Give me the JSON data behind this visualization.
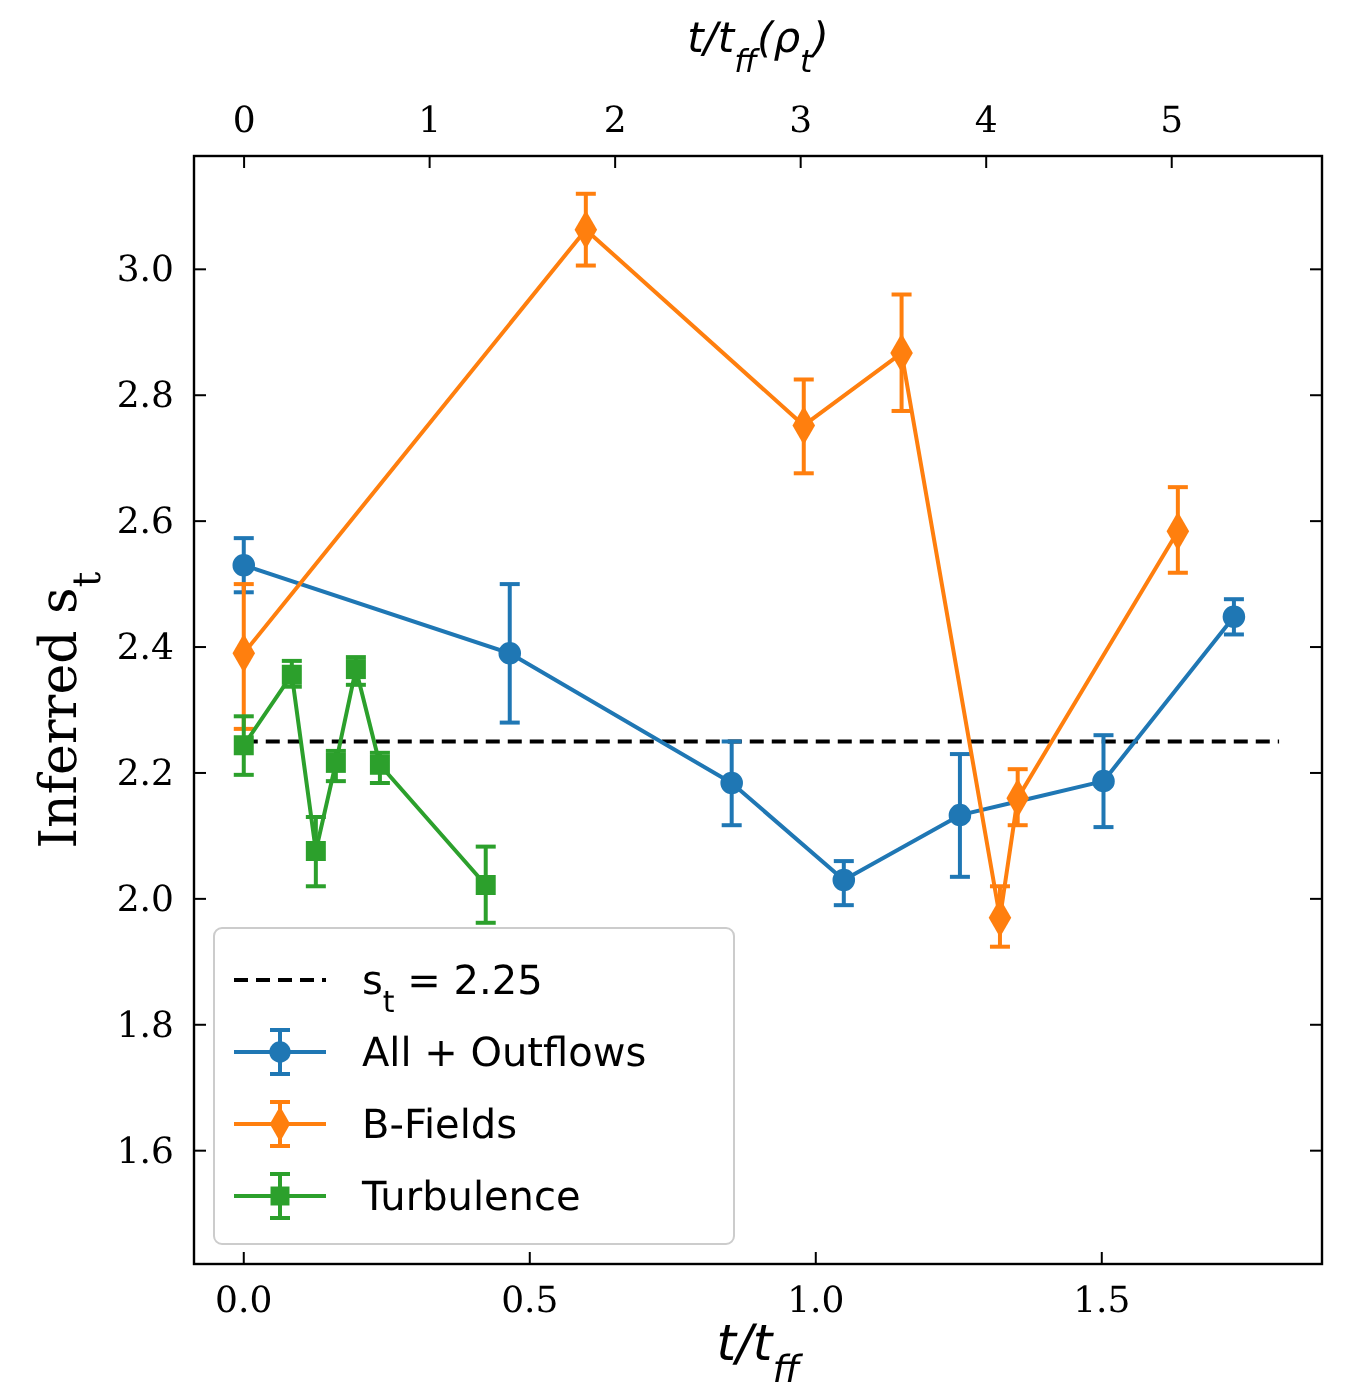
{
  "chart_data": {
    "type": "line",
    "xlabel": "t/t$_{ff}$",
    "ylabel": "Inferred s$_{t}$",
    "x2label": "t/t$_{ff}$(ρ$_{t}$)",
    "xlim": [
      -0.087,
      1.885
    ],
    "xticks": [
      {
        "value": 0,
        "label": "0.0"
      },
      {
        "value": 0.5,
        "label": "0.5"
      },
      {
        "value": 1,
        "label": "1.0"
      },
      {
        "value": 1.5,
        "label": "1.5"
      }
    ],
    "x2lim": [
      -0.27,
      5.81
    ],
    "x2ticks": [
      0,
      1,
      2,
      3,
      4,
      5
    ],
    "ylim": [
      1.42,
      3.18
    ],
    "yticks": [
      {
        "value": 1.6,
        "label": "1.6"
      },
      {
        "value": 1.8,
        "label": "1.8"
      },
      {
        "value": 2.0,
        "label": "2.0"
      },
      {
        "value": 2.2,
        "label": "2.2"
      },
      {
        "value": 2.4,
        "label": "2.4"
      },
      {
        "value": 2.6,
        "label": "2.6"
      },
      {
        "value": 2.8,
        "label": "2.8"
      },
      {
        "value": 3.0,
        "label": "3.0"
      }
    ],
    "grid": false,
    "legend": "bottom left",
    "series": [
      {
        "name": "s$_{t}$ = 2.25",
        "color": "#000000",
        "line_style": "dashed",
        "marker": "none",
        "x": [
          0,
          1.81
        ],
        "values": [
          2.25,
          2.25
        ]
      },
      {
        "name": "All + Outflows",
        "color": "#1f77b4",
        "marker": "circle",
        "x": [
          0,
          0.465,
          0.853,
          1.049,
          1.252,
          1.503,
          1.731
        ],
        "values": [
          2.53,
          2.39,
          2.184,
          2.03,
          2.133,
          2.187,
          2.448
        ],
        "errors": [
          [
            2.487,
            2.573
          ],
          [
            2.28,
            2.5
          ],
          [
            2.117,
            2.25
          ],
          [
            1.99,
            2.06
          ],
          [
            2.035,
            2.23
          ],
          [
            2.114,
            2.26
          ],
          [
            2.42,
            2.476
          ]
        ]
      },
      {
        "name": "B-Fields",
        "color": "#ff7f0e",
        "marker": "diamond",
        "x": [
          0,
          0.598,
          0.979,
          1.15,
          1.322,
          1.353,
          1.633
        ],
        "values": [
          2.39,
          3.063,
          2.752,
          2.867,
          1.97,
          2.16,
          2.584
        ],
        "errors": [
          [
            2.27,
            2.5
          ],
          [
            3.006,
            3.12
          ],
          [
            2.676,
            2.825
          ],
          [
            2.775,
            2.96
          ],
          [
            1.924,
            2.02
          ],
          [
            2.117,
            2.206
          ],
          [
            2.518,
            2.654
          ]
        ]
      },
      {
        "name": "Turbulence",
        "color": "#2ca02c",
        "marker": "square",
        "x": [
          0,
          0.084,
          0.126,
          0.161,
          0.196,
          0.238,
          0.423
        ],
        "values": [
          2.244,
          2.356,
          2.076,
          2.216,
          2.365,
          2.213,
          2.022
        ],
        "errors": [
          [
            2.197,
            2.29
          ],
          [
            2.337,
            2.378
          ],
          [
            2.02,
            2.13
          ],
          [
            2.187,
            2.235
          ],
          [
            2.34,
            2.384
          ],
          [
            2.184,
            2.232
          ],
          [
            1.962,
            2.083
          ]
        ]
      }
    ]
  }
}
